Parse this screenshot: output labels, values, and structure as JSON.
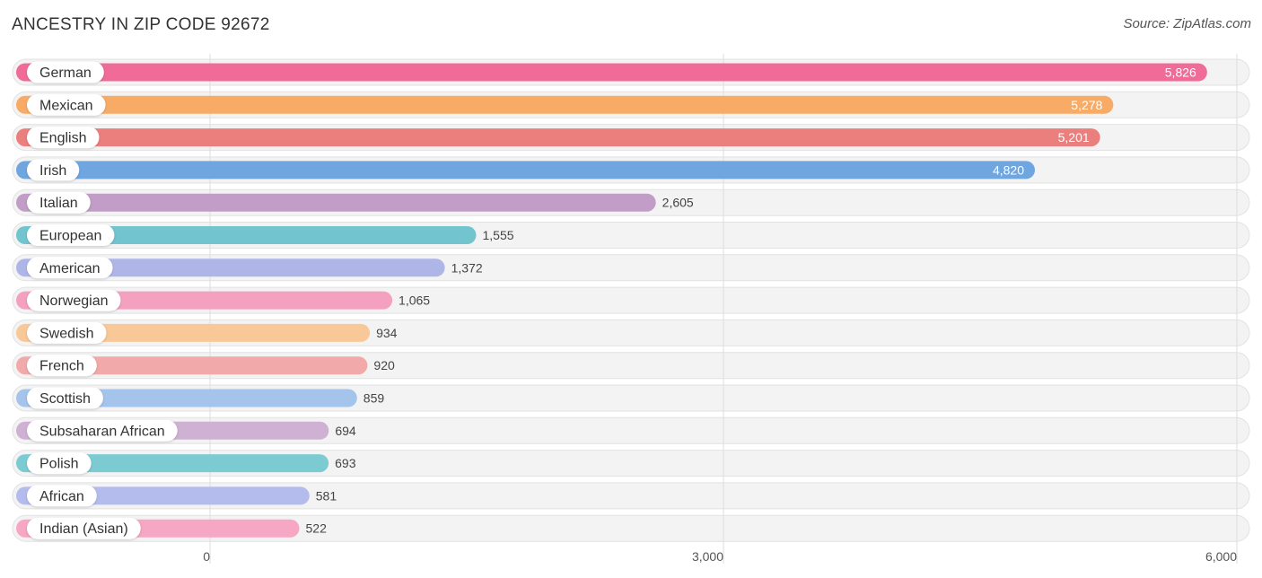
{
  "title": "ANCESTRY IN ZIP CODE 92672",
  "source": "Source: ZipAtlas.com",
  "chart_data": {
    "type": "bar",
    "orientation": "horizontal",
    "title": "ANCESTRY IN ZIP CODE 92672",
    "xlabel": "",
    "ylabel": "",
    "xlim": [
      0,
      6000
    ],
    "ticks": [
      0,
      3000,
      6000
    ],
    "tick_labels": [
      "0",
      "3,000",
      "6,000"
    ],
    "categories": [
      "German",
      "Mexican",
      "English",
      "Irish",
      "Italian",
      "European",
      "American",
      "Norwegian",
      "Swedish",
      "French",
      "Scottish",
      "Subsaharan African",
      "Polish",
      "African",
      "Indian (Asian)"
    ],
    "values": [
      5826,
      5278,
      5201,
      4820,
      2605,
      1555,
      1372,
      1065,
      934,
      920,
      859,
      694,
      693,
      581,
      522
    ],
    "value_labels": [
      "5,826",
      "5,278",
      "5,201",
      "4,820",
      "2,605",
      "1,555",
      "1,372",
      "1,065",
      "934",
      "920",
      "859",
      "694",
      "693",
      "581",
      "522"
    ],
    "colors": [
      "#f06b97",
      "#f7ab67",
      "#ea7f7e",
      "#6fa6e0",
      "#c19dc8",
      "#72c4cf",
      "#aeb6e8",
      "#f4a0bf",
      "#f8c898",
      "#f1a9a9",
      "#a5c4eb",
      "#cfb1d4",
      "#7ccbd3",
      "#b3bcec",
      "#f6a7c4"
    ]
  }
}
